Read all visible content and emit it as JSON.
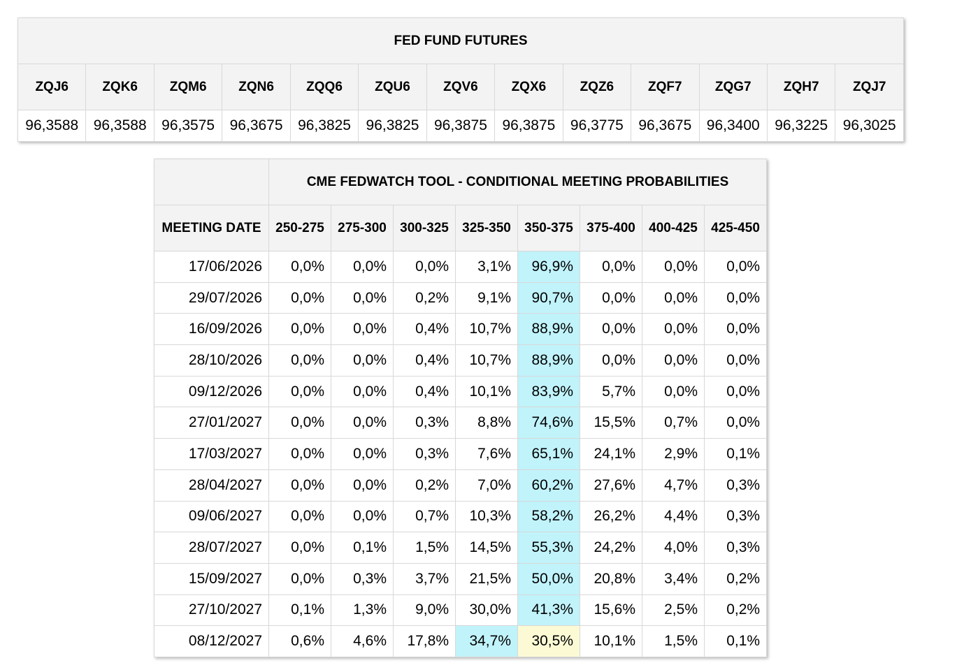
{
  "futures": {
    "title": "FED FUND FUTURES",
    "contracts": [
      "ZQJ6",
      "ZQK6",
      "ZQM6",
      "ZQN6",
      "ZQQ6",
      "ZQU6",
      "ZQV6",
      "ZQX6",
      "ZQZ6",
      "ZQF7",
      "ZQG7",
      "ZQH7",
      "ZQJ7"
    ],
    "prices": [
      "96,3588",
      "96,3588",
      "96,3575",
      "96,3675",
      "96,3825",
      "96,3825",
      "96,3875",
      "96,3875",
      "96,3775",
      "96,3675",
      "96,3400",
      "96,3225",
      "96,3025"
    ]
  },
  "probabilities": {
    "title": "CME FEDWATCH TOOL - CONDITIONAL MEETING PROBABILITIES",
    "date_header": "MEETING DATE",
    "ranges": [
      "250-275",
      "275-300",
      "300-325",
      "325-350",
      "350-375",
      "375-400",
      "400-425",
      "425-450"
    ],
    "highlight_colors": {
      "max": "#c1f3fb",
      "second": "#fbfad5"
    },
    "rows": [
      {
        "date": "17/06/2026",
        "values": [
          "0,0%",
          "0,0%",
          "0,0%",
          "3,1%",
          "96,9%",
          "0,0%",
          "0,0%",
          "0,0%"
        ],
        "max_index": 4,
        "second_index": -1
      },
      {
        "date": "29/07/2026",
        "values": [
          "0,0%",
          "0,0%",
          "0,2%",
          "9,1%",
          "90,7%",
          "0,0%",
          "0,0%",
          "0,0%"
        ],
        "max_index": 4,
        "second_index": -1
      },
      {
        "date": "16/09/2026",
        "values": [
          "0,0%",
          "0,0%",
          "0,4%",
          "10,7%",
          "88,9%",
          "0,0%",
          "0,0%",
          "0,0%"
        ],
        "max_index": 4,
        "second_index": -1
      },
      {
        "date": "28/10/2026",
        "values": [
          "0,0%",
          "0,0%",
          "0,4%",
          "10,7%",
          "88,9%",
          "0,0%",
          "0,0%",
          "0,0%"
        ],
        "max_index": 4,
        "second_index": -1
      },
      {
        "date": "09/12/2026",
        "values": [
          "0,0%",
          "0,0%",
          "0,4%",
          "10,1%",
          "83,9%",
          "5,7%",
          "0,0%",
          "0,0%"
        ],
        "max_index": 4,
        "second_index": -1
      },
      {
        "date": "27/01/2027",
        "values": [
          "0,0%",
          "0,0%",
          "0,3%",
          "8,8%",
          "74,6%",
          "15,5%",
          "0,7%",
          "0,0%"
        ],
        "max_index": 4,
        "second_index": -1
      },
      {
        "date": "17/03/2027",
        "values": [
          "0,0%",
          "0,0%",
          "0,3%",
          "7,6%",
          "65,1%",
          "24,1%",
          "2,9%",
          "0,1%"
        ],
        "max_index": 4,
        "second_index": -1
      },
      {
        "date": "28/04/2027",
        "values": [
          "0,0%",
          "0,0%",
          "0,2%",
          "7,0%",
          "60,2%",
          "27,6%",
          "4,7%",
          "0,3%"
        ],
        "max_index": 4,
        "second_index": -1
      },
      {
        "date": "09/06/2027",
        "values": [
          "0,0%",
          "0,0%",
          "0,7%",
          "10,3%",
          "58,2%",
          "26,2%",
          "4,4%",
          "0,3%"
        ],
        "max_index": 4,
        "second_index": -1
      },
      {
        "date": "28/07/2027",
        "values": [
          "0,0%",
          "0,1%",
          "1,5%",
          "14,5%",
          "55,3%",
          "24,2%",
          "4,0%",
          "0,3%"
        ],
        "max_index": 4,
        "second_index": -1
      },
      {
        "date": "15/09/2027",
        "values": [
          "0,0%",
          "0,3%",
          "3,7%",
          "21,5%",
          "50,0%",
          "20,8%",
          "3,4%",
          "0,2%"
        ],
        "max_index": 4,
        "second_index": -1
      },
      {
        "date": "27/10/2027",
        "values": [
          "0,1%",
          "1,3%",
          "9,0%",
          "30,0%",
          "41,3%",
          "15,6%",
          "2,5%",
          "0,2%"
        ],
        "max_index": 4,
        "second_index": -1
      },
      {
        "date": "08/12/2027",
        "values": [
          "0,6%",
          "4,6%",
          "17,8%",
          "34,7%",
          "30,5%",
          "10,1%",
          "1,5%",
          "0,1%"
        ],
        "max_index": 3,
        "second_index": 4
      }
    ]
  }
}
